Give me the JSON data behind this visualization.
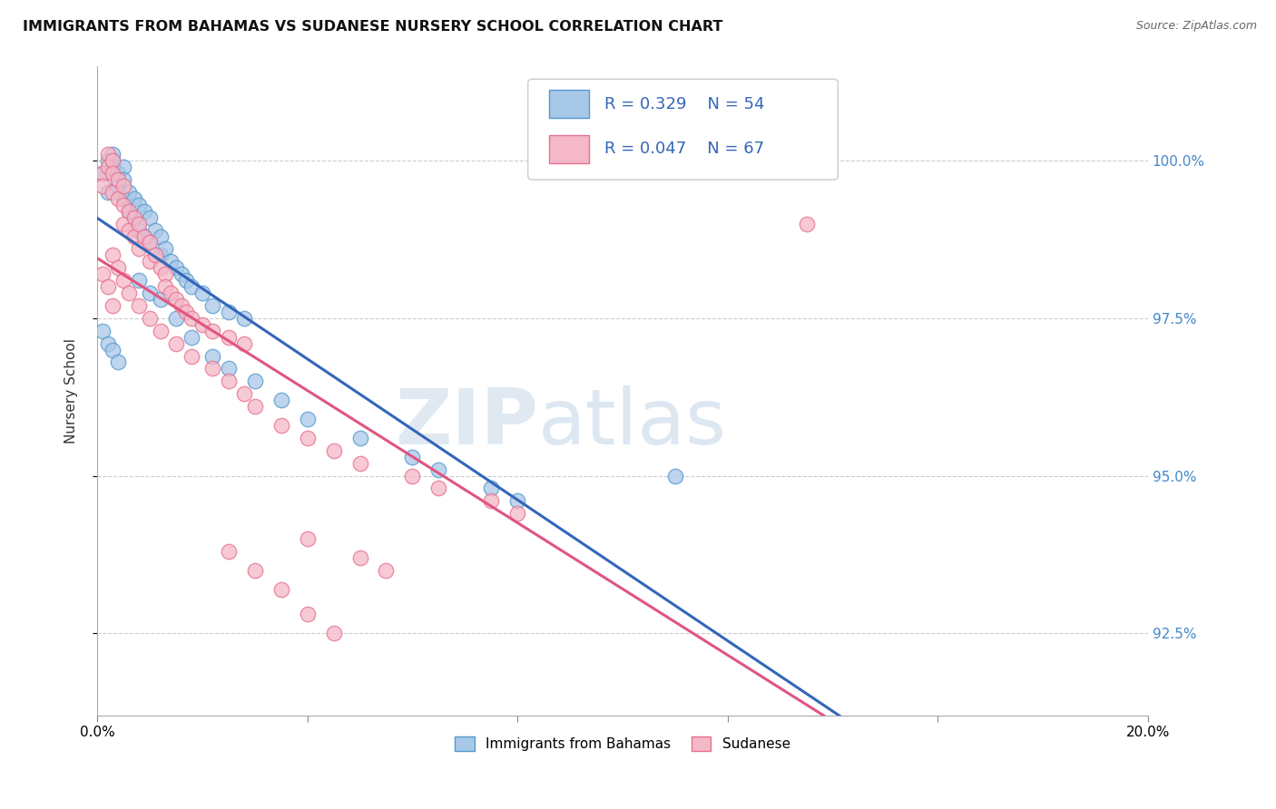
{
  "title": "IMMIGRANTS FROM BAHAMAS VS SUDANESE NURSERY SCHOOL CORRELATION CHART",
  "source": "Source: ZipAtlas.com",
  "ylabel": "Nursery School",
  "yticks": [
    92.5,
    95.0,
    97.5,
    100.0
  ],
  "ytick_labels": [
    "92.5%",
    "95.0%",
    "97.5%",
    "100.0%"
  ],
  "xlim": [
    0.0,
    0.2
  ],
  "ylim": [
    91.2,
    101.5
  ],
  "legend_r1": "R = 0.329",
  "legend_n1": "N = 54",
  "legend_r2": "R = 0.047",
  "legend_n2": "N = 67",
  "color_blue_fill": "#a8c8e8",
  "color_blue_edge": "#5599cc",
  "color_pink_fill": "#f4b8c8",
  "color_pink_edge": "#e87090",
  "color_blue_line": "#3366bb",
  "color_pink_line": "#e05580",
  "watermark_zip": "ZIP",
  "watermark_atlas": "atlas",
  "blue_x": [
    0.001,
    0.002,
    0.002,
    0.003,
    0.003,
    0.003,
    0.004,
    0.004,
    0.005,
    0.005,
    0.005,
    0.006,
    0.006,
    0.007,
    0.007,
    0.008,
    0.008,
    0.009,
    0.009,
    0.01,
    0.01,
    0.011,
    0.012,
    0.012,
    0.013,
    0.014,
    0.015,
    0.016,
    0.017,
    0.018,
    0.02,
    0.022,
    0.025,
    0.028,
    0.008,
    0.01,
    0.012,
    0.015,
    0.018,
    0.022,
    0.025,
    0.03,
    0.035,
    0.04,
    0.05,
    0.06,
    0.065,
    0.075,
    0.08,
    0.11,
    0.001,
    0.002,
    0.003,
    0.004
  ],
  "blue_y": [
    99.8,
    100.0,
    99.5,
    100.1,
    99.9,
    100.0,
    99.8,
    99.6,
    99.9,
    99.7,
    99.4,
    99.5,
    99.2,
    99.4,
    99.1,
    99.3,
    98.9,
    99.2,
    98.8,
    99.1,
    98.7,
    98.9,
    98.8,
    98.5,
    98.6,
    98.4,
    98.3,
    98.2,
    98.1,
    98.0,
    97.9,
    97.7,
    97.6,
    97.5,
    98.1,
    97.9,
    97.8,
    97.5,
    97.2,
    96.9,
    96.7,
    96.5,
    96.2,
    95.9,
    95.6,
    95.3,
    95.1,
    94.8,
    94.6,
    95.0,
    97.3,
    97.1,
    97.0,
    96.8
  ],
  "pink_x": [
    0.001,
    0.001,
    0.002,
    0.002,
    0.003,
    0.003,
    0.003,
    0.004,
    0.004,
    0.005,
    0.005,
    0.005,
    0.006,
    0.006,
    0.007,
    0.007,
    0.008,
    0.008,
    0.009,
    0.01,
    0.01,
    0.011,
    0.012,
    0.013,
    0.013,
    0.014,
    0.015,
    0.016,
    0.017,
    0.018,
    0.02,
    0.022,
    0.025,
    0.028,
    0.003,
    0.004,
    0.005,
    0.006,
    0.008,
    0.01,
    0.012,
    0.015,
    0.018,
    0.022,
    0.025,
    0.028,
    0.03,
    0.035,
    0.04,
    0.045,
    0.05,
    0.06,
    0.065,
    0.075,
    0.08,
    0.135,
    0.001,
    0.002,
    0.003,
    0.04,
    0.05,
    0.055,
    0.025,
    0.03,
    0.035,
    0.04,
    0.045
  ],
  "pink_y": [
    99.8,
    99.6,
    100.1,
    99.9,
    100.0,
    99.8,
    99.5,
    99.7,
    99.4,
    99.6,
    99.3,
    99.0,
    99.2,
    98.9,
    99.1,
    98.8,
    99.0,
    98.6,
    98.8,
    98.7,
    98.4,
    98.5,
    98.3,
    98.2,
    98.0,
    97.9,
    97.8,
    97.7,
    97.6,
    97.5,
    97.4,
    97.3,
    97.2,
    97.1,
    98.5,
    98.3,
    98.1,
    97.9,
    97.7,
    97.5,
    97.3,
    97.1,
    96.9,
    96.7,
    96.5,
    96.3,
    96.1,
    95.8,
    95.6,
    95.4,
    95.2,
    95.0,
    94.8,
    94.6,
    94.4,
    99.0,
    98.2,
    98.0,
    97.7,
    94.0,
    93.7,
    93.5,
    93.8,
    93.5,
    93.2,
    92.8,
    92.5
  ]
}
